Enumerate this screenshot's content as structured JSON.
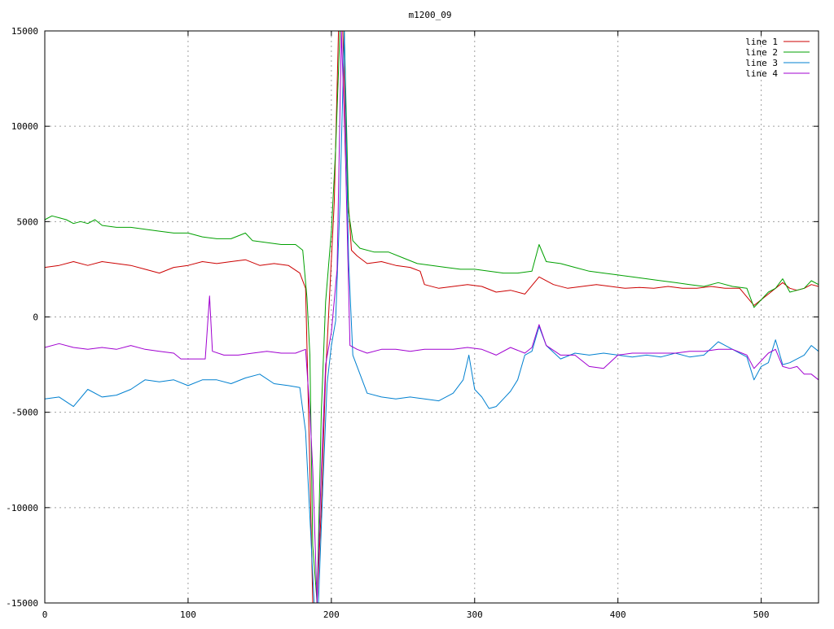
{
  "chart_data": {
    "type": "line",
    "title": "m1200_09",
    "xlabel": "",
    "ylabel": "",
    "xlim": [
      0,
      540
    ],
    "ylim": [
      -15000,
      15000
    ],
    "x_ticks": [
      0,
      100,
      200,
      300,
      400,
      500
    ],
    "y_ticks": [
      -15000,
      -10000,
      -5000,
      0,
      5000,
      10000,
      15000
    ],
    "x_tick_labels": [
      "0",
      "100",
      "200",
      "300",
      "400",
      "500"
    ],
    "y_tick_labels": [
      "-15000",
      "-10000",
      "-5000",
      "0",
      "5000",
      "10000",
      "15000"
    ],
    "grid": true,
    "legend_position": "top-right",
    "series": [
      {
        "name": "line 1",
        "color": "#cc0000",
        "points": [
          [
            0,
            2600
          ],
          [
            10,
            2700
          ],
          [
            20,
            2900
          ],
          [
            30,
            2700
          ],
          [
            40,
            2900
          ],
          [
            50,
            2800
          ],
          [
            60,
            2700
          ],
          [
            70,
            2500
          ],
          [
            80,
            2300
          ],
          [
            90,
            2600
          ],
          [
            100,
            2700
          ],
          [
            110,
            2900
          ],
          [
            120,
            2800
          ],
          [
            130,
            2900
          ],
          [
            140,
            3000
          ],
          [
            150,
            2700
          ],
          [
            160,
            2800
          ],
          [
            170,
            2700
          ],
          [
            178,
            2300
          ],
          [
            182,
            1500
          ],
          [
            185,
            -8000
          ],
          [
            187,
            -15000
          ],
          [
            190,
            -15000
          ],
          [
            193,
            -10000
          ],
          [
            196,
            -3000
          ],
          [
            199,
            1500
          ],
          [
            202,
            6000
          ],
          [
            205,
            15000
          ],
          [
            208,
            15000
          ],
          [
            211,
            7000
          ],
          [
            214,
            3500
          ],
          [
            218,
            3200
          ],
          [
            225,
            2800
          ],
          [
            235,
            2900
          ],
          [
            245,
            2700
          ],
          [
            255,
            2600
          ],
          [
            262,
            2400
          ],
          [
            265,
            1700
          ],
          [
            275,
            1500
          ],
          [
            285,
            1600
          ],
          [
            295,
            1700
          ],
          [
            305,
            1600
          ],
          [
            315,
            1300
          ],
          [
            325,
            1400
          ],
          [
            335,
            1200
          ],
          [
            345,
            2100
          ],
          [
            355,
            1700
          ],
          [
            365,
            1500
          ],
          [
            375,
            1600
          ],
          [
            385,
            1700
          ],
          [
            395,
            1600
          ],
          [
            405,
            1500
          ],
          [
            415,
            1550
          ],
          [
            425,
            1500
          ],
          [
            435,
            1600
          ],
          [
            445,
            1500
          ],
          [
            455,
            1500
          ],
          [
            465,
            1600
          ],
          [
            475,
            1500
          ],
          [
            485,
            1500
          ],
          [
            495,
            600
          ],
          [
            500,
            900
          ],
          [
            505,
            1200
          ],
          [
            510,
            1500
          ],
          [
            515,
            1800
          ],
          [
            520,
            1500
          ],
          [
            525,
            1400
          ],
          [
            530,
            1500
          ],
          [
            535,
            1700
          ],
          [
            540,
            1600
          ]
        ]
      },
      {
        "name": "line 2",
        "color": "#00a000",
        "points": [
          [
            0,
            5100
          ],
          [
            5,
            5300
          ],
          [
            10,
            5200
          ],
          [
            15,
            5100
          ],
          [
            20,
            4900
          ],
          [
            25,
            5000
          ],
          [
            30,
            4900
          ],
          [
            35,
            5100
          ],
          [
            40,
            4800
          ],
          [
            50,
            4700
          ],
          [
            60,
            4700
          ],
          [
            70,
            4600
          ],
          [
            80,
            4500
          ],
          [
            90,
            4400
          ],
          [
            100,
            4400
          ],
          [
            110,
            4200
          ],
          [
            120,
            4100
          ],
          [
            130,
            4100
          ],
          [
            140,
            4400
          ],
          [
            145,
            4000
          ],
          [
            155,
            3900
          ],
          [
            165,
            3800
          ],
          [
            175,
            3800
          ],
          [
            180,
            3500
          ],
          [
            183,
            1000
          ],
          [
            185,
            -2000
          ],
          [
            187,
            -12000
          ],
          [
            190,
            -15000
          ],
          [
            193,
            -5000
          ],
          [
            196,
            800
          ],
          [
            200,
            4500
          ],
          [
            203,
            8800
          ],
          [
            206,
            15000
          ],
          [
            209,
            15000
          ],
          [
            212,
            5500
          ],
          [
            215,
            4000
          ],
          [
            220,
            3600
          ],
          [
            230,
            3400
          ],
          [
            240,
            3400
          ],
          [
            250,
            3100
          ],
          [
            260,
            2800
          ],
          [
            270,
            2700
          ],
          [
            280,
            2600
          ],
          [
            290,
            2500
          ],
          [
            300,
            2500
          ],
          [
            310,
            2400
          ],
          [
            320,
            2300
          ],
          [
            330,
            2300
          ],
          [
            340,
            2400
          ],
          [
            345,
            3800
          ],
          [
            350,
            2900
          ],
          [
            360,
            2800
          ],
          [
            370,
            2600
          ],
          [
            380,
            2400
          ],
          [
            390,
            2300
          ],
          [
            400,
            2200
          ],
          [
            410,
            2100
          ],
          [
            420,
            2000
          ],
          [
            430,
            1900
          ],
          [
            440,
            1800
          ],
          [
            450,
            1700
          ],
          [
            460,
            1600
          ],
          [
            470,
            1800
          ],
          [
            480,
            1600
          ],
          [
            490,
            1500
          ],
          [
            495,
            500
          ],
          [
            500,
            900
          ],
          [
            505,
            1300
          ],
          [
            510,
            1500
          ],
          [
            515,
            2000
          ],
          [
            520,
            1300
          ],
          [
            525,
            1400
          ],
          [
            530,
            1500
          ],
          [
            535,
            1900
          ],
          [
            540,
            1700
          ]
        ]
      },
      {
        "name": "line 3",
        "color": "#0080d0",
        "points": [
          [
            0,
            -4300
          ],
          [
            10,
            -4200
          ],
          [
            20,
            -4700
          ],
          [
            30,
            -3800
          ],
          [
            40,
            -4200
          ],
          [
            50,
            -4100
          ],
          [
            60,
            -3800
          ],
          [
            70,
            -3300
          ],
          [
            80,
            -3400
          ],
          [
            90,
            -3300
          ],
          [
            100,
            -3600
          ],
          [
            110,
            -3300
          ],
          [
            120,
            -3300
          ],
          [
            130,
            -3500
          ],
          [
            140,
            -3200
          ],
          [
            150,
            -3000
          ],
          [
            160,
            -3500
          ],
          [
            170,
            -3600
          ],
          [
            178,
            -3700
          ],
          [
            182,
            -6000
          ],
          [
            185,
            -10500
          ],
          [
            188,
            -15000
          ],
          [
            191,
            -15000
          ],
          [
            194,
            -9000
          ],
          [
            197,
            -3500
          ],
          [
            200,
            -1500
          ],
          [
            203,
            -200
          ],
          [
            206,
            6000
          ],
          [
            209,
            15000
          ],
          [
            212,
            3000
          ],
          [
            215,
            -2000
          ],
          [
            220,
            -3000
          ],
          [
            225,
            -4000
          ],
          [
            235,
            -4200
          ],
          [
            245,
            -4300
          ],
          [
            255,
            -4200
          ],
          [
            265,
            -4300
          ],
          [
            275,
            -4400
          ],
          [
            285,
            -4000
          ],
          [
            292,
            -3300
          ],
          [
            296,
            -2000
          ],
          [
            300,
            -3800
          ],
          [
            305,
            -4200
          ],
          [
            310,
            -4800
          ],
          [
            315,
            -4700
          ],
          [
            320,
            -4300
          ],
          [
            325,
            -3900
          ],
          [
            330,
            -3300
          ],
          [
            335,
            -2000
          ],
          [
            340,
            -1800
          ],
          [
            345,
            -500
          ],
          [
            350,
            -1500
          ],
          [
            360,
            -2200
          ],
          [
            370,
            -1900
          ],
          [
            380,
            -2000
          ],
          [
            390,
            -1900
          ],
          [
            400,
            -2000
          ],
          [
            410,
            -2100
          ],
          [
            420,
            -2000
          ],
          [
            430,
            -2100
          ],
          [
            440,
            -1900
          ],
          [
            450,
            -2100
          ],
          [
            460,
            -2000
          ],
          [
            470,
            -1300
          ],
          [
            480,
            -1700
          ],
          [
            490,
            -2100
          ],
          [
            495,
            -3300
          ],
          [
            500,
            -2600
          ],
          [
            505,
            -2400
          ],
          [
            510,
            -1200
          ],
          [
            515,
            -2500
          ],
          [
            520,
            -2400
          ],
          [
            525,
            -2200
          ],
          [
            530,
            -2000
          ],
          [
            535,
            -1500
          ],
          [
            540,
            -1800
          ]
        ]
      },
      {
        "name": "line 4",
        "color": "#a000d0",
        "points": [
          [
            0,
            -1600
          ],
          [
            10,
            -1400
          ],
          [
            20,
            -1600
          ],
          [
            30,
            -1700
          ],
          [
            40,
            -1600
          ],
          [
            50,
            -1700
          ],
          [
            60,
            -1500
          ],
          [
            70,
            -1700
          ],
          [
            80,
            -1800
          ],
          [
            90,
            -1900
          ],
          [
            95,
            -2200
          ],
          [
            105,
            -2200
          ],
          [
            112,
            -2200
          ],
          [
            115,
            1100
          ],
          [
            117,
            -1800
          ],
          [
            125,
            -2000
          ],
          [
            135,
            -2000
          ],
          [
            145,
            -1900
          ],
          [
            155,
            -1800
          ],
          [
            165,
            -1900
          ],
          [
            175,
            -1900
          ],
          [
            182,
            -1700
          ],
          [
            185,
            -5000
          ],
          [
            187,
            -8000
          ],
          [
            190,
            -15000
          ],
          [
            193,
            -8000
          ],
          [
            196,
            -2500
          ],
          [
            200,
            -800
          ],
          [
            204,
            2500
          ],
          [
            207,
            15000
          ],
          [
            210,
            8000
          ],
          [
            213,
            -1500
          ],
          [
            218,
            -1700
          ],
          [
            225,
            -1900
          ],
          [
            235,
            -1700
          ],
          [
            245,
            -1700
          ],
          [
            255,
            -1800
          ],
          [
            265,
            -1700
          ],
          [
            275,
            -1700
          ],
          [
            285,
            -1700
          ],
          [
            295,
            -1600
          ],
          [
            305,
            -1700
          ],
          [
            315,
            -2000
          ],
          [
            325,
            -1600
          ],
          [
            335,
            -1900
          ],
          [
            340,
            -1600
          ],
          [
            345,
            -400
          ],
          [
            350,
            -1500
          ],
          [
            360,
            -2000
          ],
          [
            370,
            -2000
          ],
          [
            380,
            -2600
          ],
          [
            390,
            -2700
          ],
          [
            400,
            -2000
          ],
          [
            410,
            -1900
          ],
          [
            420,
            -1900
          ],
          [
            430,
            -1900
          ],
          [
            440,
            -1900
          ],
          [
            450,
            -1800
          ],
          [
            460,
            -1800
          ],
          [
            470,
            -1700
          ],
          [
            480,
            -1700
          ],
          [
            490,
            -2000
          ],
          [
            495,
            -2700
          ],
          [
            500,
            -2300
          ],
          [
            505,
            -1900
          ],
          [
            510,
            -1700
          ],
          [
            515,
            -2600
          ],
          [
            520,
            -2700
          ],
          [
            525,
            -2600
          ],
          [
            530,
            -3000
          ],
          [
            535,
            -3000
          ],
          [
            540,
            -3300
          ]
        ]
      }
    ]
  }
}
